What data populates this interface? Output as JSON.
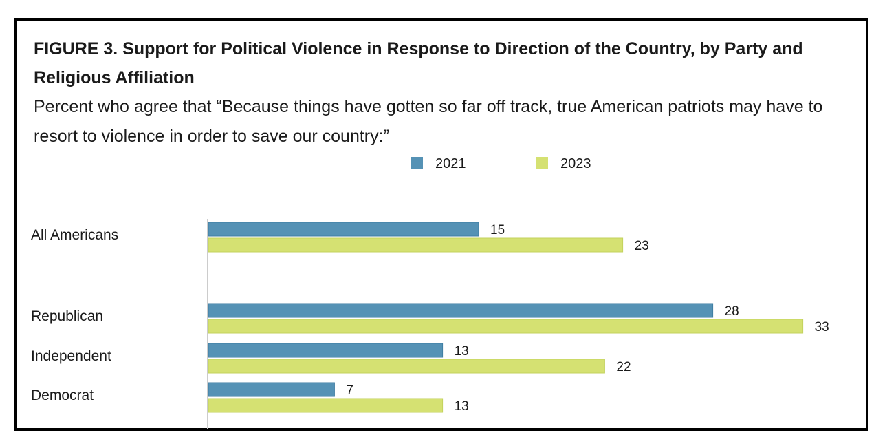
{
  "figure": {
    "title": "FIGURE 3.  Support for Political Violence in Response to Direction of the Country, by Party and Religious Affiliation",
    "subtitle": "Percent who agree that “Because things have gotten so far off track, true American patriots may have to resort to violence in order to save our country:”"
  },
  "colors": {
    "s2021": "#5592b5",
    "s2023": "#d5e172",
    "axis": "#cccccc"
  },
  "chart_data": {
    "type": "bar",
    "orientation": "horizontal",
    "title": "FIGURE 3.  Support for Political Violence in Response to Direction of the Country, by Party and Religious Affiliation",
    "subtitle": "Percent who agree that “Because things have gotten so far off track, true American patriots may have to resort to violence in order to save our country:”",
    "categories": [
      "All Americans",
      "Republican",
      "Independent",
      "Democrat"
    ],
    "series": [
      {
        "name": "2021",
        "values": [
          15,
          28,
          13,
          7
        ]
      },
      {
        "name": "2023",
        "values": [
          23,
          33,
          22,
          13
        ]
      }
    ],
    "xlabel": "",
    "ylabel": "",
    "xlim": [
      0,
      33
    ],
    "grid": false,
    "legend": "top-center",
    "data_labels": true
  }
}
